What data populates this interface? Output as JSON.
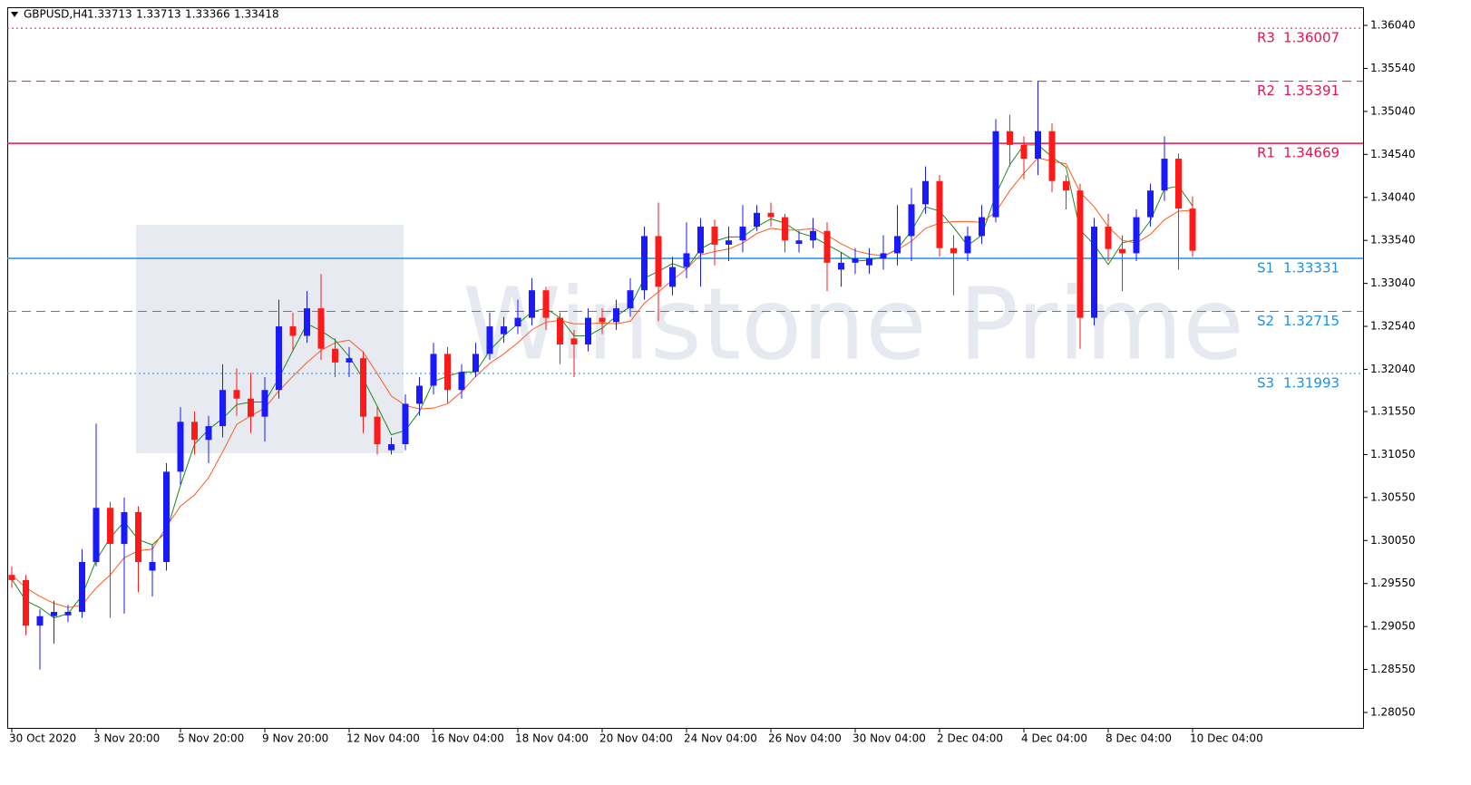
{
  "chart_data": {
    "type": "candlestick",
    "symbol": "GBPUSD,H4",
    "ohlc": [
      1.33713,
      1.33713,
      1.33366,
      1.33418
    ],
    "watermark": "Winstone Prime",
    "categories": [
      "30 Oct 2020",
      null,
      null,
      null,
      null,
      null,
      "3 Nov 20:00",
      null,
      null,
      null,
      null,
      null,
      "5 Nov 20:00",
      null,
      null,
      null,
      null,
      null,
      "9 Nov 20:00",
      null,
      null,
      null,
      null,
      null,
      "12 Nov 04:00",
      null,
      null,
      null,
      null,
      null,
      "16 Nov 04:00",
      null,
      null,
      null,
      null,
      null,
      "18 Nov 04:00",
      null,
      null,
      null,
      null,
      null,
      "20 Nov 04:00",
      null,
      null,
      null,
      null,
      null,
      "24 Nov 04:00",
      null,
      null,
      null,
      null,
      null,
      "26 Nov 04:00",
      null,
      null,
      null,
      null,
      null,
      "30 Nov 04:00",
      null,
      null,
      null,
      null,
      null,
      "2 Dec 04:00",
      null,
      null,
      null,
      null,
      null,
      "4 Dec 04:00",
      null,
      null,
      null,
      null,
      null,
      "8 Dec 04:00",
      null,
      null,
      null,
      null,
      null,
      "10 Dec 04:00"
    ],
    "open": [
      1.2965,
      1.2959,
      1.2906,
      1.2917,
      1.2918,
      1.2922,
      1.298,
      1.3043,
      1.3001,
      1.3038,
      1.297,
      1.298,
      1.3085,
      1.3143,
      1.3122,
      1.3138,
      1.318,
      1.317,
      1.3149,
      1.318,
      1.3254,
      1.3243,
      1.3275,
      1.3228,
      1.3212,
      1.3217,
      1.3149,
      1.311,
      1.3117,
      1.3164,
      1.3185,
      1.3222,
      1.318,
      1.3201,
      1.3222,
      1.3245,
      1.3254,
      1.3264,
      1.3296,
      1.3264,
      1.324,
      1.3233,
      1.3264,
      1.3259,
      1.3275,
      1.3296,
      1.3359,
      1.33,
      1.3323,
      1.3339,
      1.337,
      1.3349,
      1.3354,
      1.337,
      1.3386,
      1.3381,
      1.335,
      1.3354,
      1.3365,
      1.332,
      1.3328,
      1.3325,
      1.3333,
      1.3339,
      1.3359,
      1.3396,
      1.3423,
      1.3345,
      1.3339,
      1.3359,
      1.3381,
      1.3481,
      1.3465,
      1.3449,
      1.3481,
      1.3423,
      1.3412,
      1.3264,
      1.337,
      1.3344,
      1.3339,
      1.3381,
      1.3412,
      1.3449,
      1.3391
    ],
    "high": [
      1.2975,
      1.2965,
      1.2925,
      1.2935,
      1.293,
      1.2995,
      1.3141,
      1.305,
      1.3055,
      1.3045,
      1.3,
      1.3095,
      1.316,
      1.3155,
      1.315,
      1.321,
      1.3205,
      1.32,
      1.3195,
      1.3285,
      1.327,
      1.3295,
      1.3315,
      1.324,
      1.323,
      1.3225,
      1.316,
      1.3125,
      1.3175,
      1.3195,
      1.3235,
      1.323,
      1.321,
      1.3235,
      1.327,
      1.3265,
      1.3285,
      1.331,
      1.33,
      1.327,
      1.325,
      1.3275,
      1.3275,
      1.3285,
      1.331,
      1.337,
      1.3398,
      1.3335,
      1.3375,
      1.338,
      1.3378,
      1.337,
      1.3395,
      1.3395,
      1.3398,
      1.3385,
      1.3365,
      1.338,
      1.3375,
      1.334,
      1.3345,
      1.3345,
      1.336,
      1.3395,
      1.3415,
      1.344,
      1.343,
      1.336,
      1.337,
      1.3395,
      1.3495,
      1.35,
      1.3475,
      1.3539,
      1.349,
      1.343,
      1.342,
      1.338,
      1.3385,
      1.336,
      1.339,
      1.342,
      1.3475,
      1.3455,
      1.3405
    ],
    "low": [
      1.295,
      1.2895,
      1.2855,
      1.2885,
      1.291,
      1.2915,
      1.2975,
      1.2915,
      1.292,
      1.2945,
      1.294,
      1.297,
      1.307,
      1.3105,
      1.3095,
      1.3125,
      1.315,
      1.313,
      1.312,
      1.317,
      1.3225,
      1.3235,
      1.3215,
      1.3195,
      1.3195,
      1.313,
      1.3105,
      1.3105,
      1.311,
      1.315,
      1.3175,
      1.3165,
      1.317,
      1.3195,
      1.3215,
      1.3235,
      1.3245,
      1.3255,
      1.325,
      1.321,
      1.3195,
      1.3225,
      1.3245,
      1.325,
      1.3265,
      1.3285,
      1.326,
      1.329,
      1.331,
      1.33,
      1.3325,
      1.333,
      1.334,
      1.3365,
      1.337,
      1.334,
      1.334,
      1.3345,
      1.3295,
      1.33,
      1.3315,
      1.3315,
      1.332,
      1.3325,
      1.333,
      1.3385,
      1.3335,
      1.329,
      1.333,
      1.335,
      1.3375,
      1.344,
      1.3425,
      1.343,
      1.341,
      1.339,
      1.3228,
      1.3255,
      1.333,
      1.3295,
      1.333,
      1.337,
      1.34,
      1.332,
      1.3335
    ],
    "close": [
      1.2959,
      1.2906,
      1.2917,
      1.2922,
      1.2922,
      1.298,
      1.3043,
      1.3001,
      1.3038,
      1.298,
      1.298,
      1.3085,
      1.3143,
      1.3122,
      1.3138,
      1.318,
      1.317,
      1.3149,
      1.318,
      1.3254,
      1.3243,
      1.3275,
      1.3228,
      1.3212,
      1.3217,
      1.3149,
      1.3117,
      1.3117,
      1.3164,
      1.3185,
      1.3222,
      1.318,
      1.3201,
      1.3222,
      1.3254,
      1.3254,
      1.3264,
      1.3296,
      1.3264,
      1.3233,
      1.3233,
      1.3264,
      1.3259,
      1.3275,
      1.3296,
      1.3359,
      1.33,
      1.3323,
      1.3339,
      1.337,
      1.3349,
      1.3354,
      1.337,
      1.3386,
      1.3381,
      1.3354,
      1.3354,
      1.3365,
      1.3328,
      1.3328,
      1.3333,
      1.3333,
      1.3339,
      1.3359,
      1.3396,
      1.3423,
      1.3345,
      1.3339,
      1.3359,
      1.3381,
      1.3481,
      1.3465,
      1.3449,
      1.3481,
      1.3423,
      1.3412,
      1.3264,
      1.337,
      1.3344,
      1.3339,
      1.3381,
      1.3412,
      1.3449,
      1.3391,
      1.3342
    ],
    "up_color": "#1a1aff",
    "down_color": "#ff1a1a",
    "moving_averages": [
      {
        "color": "#1f8a1f",
        "values": [
          1.296,
          1.2935,
          1.2927,
          1.2915,
          1.292,
          1.2941,
          1.2982,
          1.3008,
          1.3027,
          1.3006,
          1.3,
          1.3015,
          1.3069,
          1.3117,
          1.3134,
          1.3147,
          1.3163,
          1.3166,
          1.3166,
          1.3194,
          1.3226,
          1.3257,
          1.3249,
          1.3238,
          1.3219,
          1.3193,
          1.3161,
          1.3128,
          1.3133,
          1.3155,
          1.319,
          1.3196,
          1.3201,
          1.3201,
          1.3226,
          1.3243,
          1.3257,
          1.3271,
          1.3275,
          1.3264,
          1.3243,
          1.3243,
          1.3252,
          1.3266,
          1.3277,
          1.331,
          1.3318,
          1.3327,
          1.3321,
          1.3344,
          1.3353,
          1.3358,
          1.3358,
          1.337,
          1.3379,
          1.3374,
          1.3363,
          1.3358,
          1.3349,
          1.334,
          1.333,
          1.3331,
          1.3335,
          1.3344,
          1.3365,
          1.3393,
          1.3388,
          1.3369,
          1.3348,
          1.336,
          1.3407,
          1.3442,
          1.3465,
          1.3465,
          1.3451,
          1.3439,
          1.3366,
          1.3349,
          1.3326,
          1.3351,
          1.3355,
          1.3377,
          1.3414,
          1.3417,
          1.3394
        ]
      },
      {
        "color": "#ff5a1f",
        "values": [
          1.2965,
          1.295,
          1.294,
          1.2932,
          1.2927,
          1.293,
          1.295,
          1.2965,
          1.2985,
          1.2993,
          1.2995,
          1.3021,
          1.3045,
          1.3058,
          1.3078,
          1.3108,
          1.314,
          1.315,
          1.3159,
          1.3179,
          1.3196,
          1.3212,
          1.3226,
          1.3235,
          1.3238,
          1.3224,
          1.3199,
          1.3173,
          1.3162,
          1.3158,
          1.3159,
          1.3164,
          1.3178,
          1.3196,
          1.3211,
          1.3222,
          1.3235,
          1.325,
          1.3259,
          1.3261,
          1.3257,
          1.3257,
          1.3258,
          1.3257,
          1.326,
          1.3281,
          1.3294,
          1.3308,
          1.3321,
          1.3337,
          1.3341,
          1.3344,
          1.3351,
          1.3362,
          1.3368,
          1.3366,
          1.3366,
          1.3368,
          1.336,
          1.335,
          1.3342,
          1.3338,
          1.3336,
          1.3343,
          1.3353,
          1.3368,
          1.3374,
          1.3376,
          1.3376,
          1.3375,
          1.3387,
          1.3412,
          1.3432,
          1.345,
          1.3446,
          1.3443,
          1.341,
          1.3393,
          1.337,
          1.3354,
          1.3351,
          1.3361,
          1.3378,
          1.3388,
          1.3389
        ]
      }
    ],
    "levels": [
      {
        "label": "R3",
        "value": 1.36007,
        "color": "#e8154d",
        "style": "dotted"
      },
      {
        "label": "R2",
        "value": 1.35391,
        "color": "#e8154d",
        "style": "dashed"
      },
      {
        "label": "R1",
        "value": 1.34669,
        "color": "#e8154d",
        "style": "solid"
      },
      {
        "label": "S1",
        "value": 1.33331,
        "color": "#1e90e6",
        "style": "solid"
      },
      {
        "label": "S2",
        "value": 1.32715,
        "color": "#1e90e6",
        "style": "dashed"
      },
      {
        "label": "S3",
        "value": 1.31993,
        "color": "#1e90e6",
        "style": "dotted"
      }
    ],
    "ylim": [
      1.27871,
      1.36251
    ],
    "yticks": [
      {
        "value": 1.3604,
        "label": "1.36040"
      },
      {
        "value": 1.3554,
        "label": "1.35540"
      },
      {
        "value": 1.3504,
        "label": "1.35040"
      },
      {
        "value": 1.3454,
        "label": "1.34540"
      },
      {
        "value": 1.3404,
        "label": "1.34040"
      },
      {
        "value": 1.3354,
        "label": "1.33540"
      },
      {
        "value": 1.3304,
        "label": "1.33040"
      },
      {
        "value": 1.3254,
        "label": "1.32540"
      },
      {
        "value": 1.3204,
        "label": "1.32040"
      },
      {
        "value": 1.3155,
        "label": "1.31550"
      },
      {
        "value": 1.3105,
        "label": "1.31050"
      },
      {
        "value": 1.3055,
        "label": "1.30550"
      },
      {
        "value": 1.3005,
        "label": "1.30050"
      },
      {
        "value": 1.2955,
        "label": "1.29550"
      },
      {
        "value": 1.2905,
        "label": "1.29050"
      },
      {
        "value": 1.2855,
        "label": "1.28550"
      },
      {
        "value": 1.2805,
        "label": "1.28050"
      }
    ],
    "grid": false
  }
}
